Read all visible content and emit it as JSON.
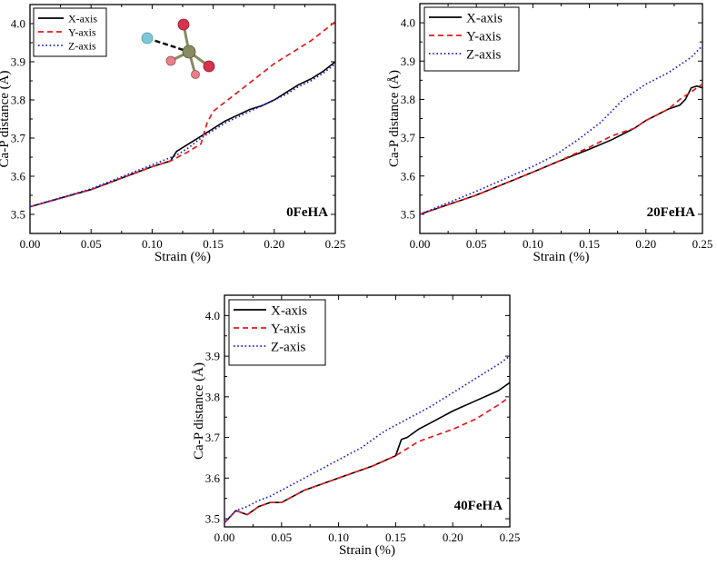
{
  "colors": {
    "X-axis": "#000000",
    "Y-axis": "#e31a1c",
    "Z-axis": "#1f1fd6",
    "molecule_ca": "#7ec8d6",
    "molecule_p": "#8a8a62",
    "molecule_o": "#d9324a",
    "molecule_o_light": "#e9818a"
  },
  "icons": [
    "ca-p-molecule-icon"
  ],
  "chart_data": [
    {
      "type": "line",
      "label": "0FeHA",
      "xlabel": "Strain (%)",
      "ylabel": "Ca-P distance (Å)",
      "xlim": [
        0,
        0.25
      ],
      "ylim": [
        3.45,
        4.05
      ],
      "xticks": [
        "0.00",
        "0.05",
        "0.10",
        "0.15",
        "0.20",
        "0.25"
      ],
      "yticks": [
        "3.5",
        "3.6",
        "3.7",
        "3.8",
        "3.9",
        "4.0"
      ],
      "legend": "top-left",
      "legend_size": "small",
      "series": [
        {
          "name": "X-axis",
          "style": "solid",
          "x": [
            0,
            0.05,
            0.1,
            0.115,
            0.12,
            0.13,
            0.14,
            0.15,
            0.16,
            0.17,
            0.18,
            0.19,
            0.2,
            0.21,
            0.22,
            0.23,
            0.24,
            0.25
          ],
          "y": [
            3.52,
            3.565,
            3.625,
            3.64,
            3.665,
            3.685,
            3.705,
            3.725,
            3.745,
            3.76,
            3.775,
            3.785,
            3.8,
            3.82,
            3.84,
            3.855,
            3.875,
            3.9
          ]
        },
        {
          "name": "Y-axis",
          "style": "dashed",
          "x": [
            0,
            0.05,
            0.1,
            0.115,
            0.13,
            0.14,
            0.145,
            0.15,
            0.16,
            0.17,
            0.18,
            0.19,
            0.2,
            0.21,
            0.22,
            0.23,
            0.24,
            0.25
          ],
          "y": [
            3.52,
            3.565,
            3.625,
            3.64,
            3.665,
            3.685,
            3.74,
            3.77,
            3.795,
            3.82,
            3.845,
            3.87,
            3.895,
            3.915,
            3.935,
            3.955,
            3.98,
            4.005
          ]
        },
        {
          "name": "Z-axis",
          "style": "dotted",
          "x": [
            0,
            0.05,
            0.1,
            0.12,
            0.13,
            0.14,
            0.15,
            0.16,
            0.17,
            0.18,
            0.19,
            0.2,
            0.21,
            0.22,
            0.23,
            0.24,
            0.25
          ],
          "y": [
            3.52,
            3.567,
            3.63,
            3.655,
            3.675,
            3.7,
            3.72,
            3.74,
            3.755,
            3.77,
            3.785,
            3.8,
            3.815,
            3.835,
            3.85,
            3.87,
            3.895
          ]
        }
      ]
    },
    {
      "type": "line",
      "label": "20FeHA",
      "xlabel": "Strain (%)",
      "ylabel": "Ca-P distance (Å)",
      "xlim": [
        0,
        0.25
      ],
      "ylim": [
        3.45,
        4.05
      ],
      "xticks": [
        "0.00",
        "0.05",
        "0.10",
        "0.15",
        "0.20",
        "0.25"
      ],
      "yticks": [
        "3.5",
        "3.6",
        "3.7",
        "3.8",
        "3.9",
        "4.0"
      ],
      "legend": "top-left",
      "legend_size": "large",
      "series": [
        {
          "name": "X-axis",
          "style": "solid",
          "x": [
            0,
            0.05,
            0.1,
            0.12,
            0.15,
            0.17,
            0.19,
            0.2,
            0.22,
            0.23,
            0.235,
            0.24,
            0.245,
            0.25
          ],
          "y": [
            3.5,
            3.55,
            3.61,
            3.635,
            3.67,
            3.695,
            3.725,
            3.745,
            3.775,
            3.785,
            3.8,
            3.83,
            3.835,
            3.83
          ]
        },
        {
          "name": "Y-axis",
          "style": "dashed",
          "x": [
            0,
            0.05,
            0.1,
            0.12,
            0.15,
            0.17,
            0.19,
            0.2,
            0.22,
            0.23,
            0.24,
            0.25
          ],
          "y": [
            3.5,
            3.55,
            3.61,
            3.635,
            3.675,
            3.705,
            3.725,
            3.745,
            3.775,
            3.8,
            3.82,
            3.84
          ]
        },
        {
          "name": "Z-axis",
          "style": "dotted",
          "x": [
            0,
            0.05,
            0.1,
            0.12,
            0.14,
            0.16,
            0.18,
            0.2,
            0.22,
            0.24,
            0.25
          ],
          "y": [
            3.5,
            3.56,
            3.625,
            3.655,
            3.695,
            3.74,
            3.8,
            3.84,
            3.87,
            3.91,
            3.94
          ]
        }
      ]
    },
    {
      "type": "line",
      "label": "40FeHA",
      "xlabel": "Strain (%)",
      "ylabel": "Ca-P distance (Å)",
      "xlim": [
        0,
        0.25
      ],
      "ylim": [
        3.48,
        4.05
      ],
      "xticks": [
        "0.00",
        "0.05",
        "0.10",
        "0.15",
        "0.20",
        "0.25"
      ],
      "yticks": [
        "3.5",
        "3.6",
        "3.7",
        "3.8",
        "3.9",
        "4.0"
      ],
      "legend": "top-left",
      "legend_size": "large",
      "series": [
        {
          "name": "X-axis",
          "style": "solid",
          "x": [
            0,
            0.01,
            0.02,
            0.03,
            0.04,
            0.05,
            0.07,
            0.1,
            0.13,
            0.15,
            0.155,
            0.16,
            0.17,
            0.18,
            0.2,
            0.22,
            0.24,
            0.25
          ],
          "y": [
            3.49,
            3.52,
            3.51,
            3.53,
            3.54,
            3.54,
            3.57,
            3.6,
            3.63,
            3.655,
            3.695,
            3.7,
            3.72,
            3.735,
            3.765,
            3.79,
            3.815,
            3.835
          ]
        },
        {
          "name": "Y-axis",
          "style": "dashed",
          "x": [
            0,
            0.01,
            0.02,
            0.03,
            0.04,
            0.05,
            0.07,
            0.1,
            0.13,
            0.15,
            0.17,
            0.2,
            0.22,
            0.24,
            0.25
          ],
          "y": [
            3.49,
            3.52,
            3.51,
            3.53,
            3.54,
            3.54,
            3.57,
            3.6,
            3.63,
            3.655,
            3.69,
            3.72,
            3.745,
            3.78,
            3.8
          ]
        },
        {
          "name": "Z-axis",
          "style": "dotted",
          "x": [
            0,
            0.01,
            0.02,
            0.03,
            0.04,
            0.06,
            0.08,
            0.1,
            0.12,
            0.14,
            0.16,
            0.18,
            0.2,
            0.22,
            0.24,
            0.25
          ],
          "y": [
            3.49,
            3.52,
            3.53,
            3.545,
            3.555,
            3.585,
            3.615,
            3.645,
            3.675,
            3.715,
            3.745,
            3.775,
            3.81,
            3.845,
            3.88,
            3.9
          ]
        }
      ]
    }
  ]
}
